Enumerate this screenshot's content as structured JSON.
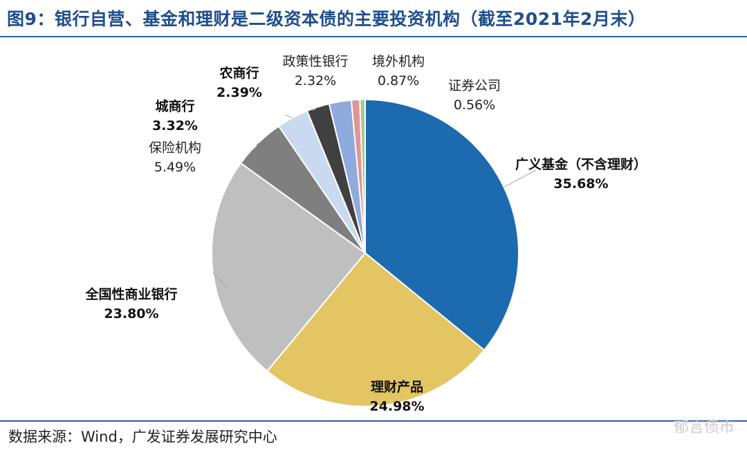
{
  "title": "图9：银行自营、基金和理财是二级资本债的主要投资机构（截至2021年2月末）",
  "source": "数据来源：Wind，广发证券发展研究中心",
  "watermark": "郁言债市",
  "chart_data": {
    "type": "pie",
    "start_angle": "12 o'clock",
    "direction": "clockwise",
    "slices": [
      {
        "name": "广义基金（不含理财）",
        "value": 35.68,
        "label": "35.68%",
        "color": "#1c6ab0",
        "bold": true
      },
      {
        "name": "理财产品",
        "value": 24.98,
        "label": "24.98%",
        "color": "#e3c563",
        "bold": true
      },
      {
        "name": "全国性商业银行",
        "value": 23.8,
        "label": "23.80%",
        "color": "#bfbfbf",
        "bold": true
      },
      {
        "name": "保险机构",
        "value": 5.49,
        "label": "5.49%",
        "color": "#7f7f7f",
        "bold": false
      },
      {
        "name": "城商行",
        "value": 3.32,
        "label": "3.32%",
        "color": "#c9d9ef",
        "bold": true
      },
      {
        "name": "农商行",
        "value": 2.39,
        "label": "2.39%",
        "color": "#404040",
        "bold": true
      },
      {
        "name": "政策性银行",
        "value": 2.32,
        "label": "2.32%",
        "color": "#8faadc",
        "bold": false
      },
      {
        "name": "境外机构",
        "value": 0.87,
        "label": "0.87%",
        "color": "#e09594",
        "bold": false
      },
      {
        "name": "证券公司",
        "value": 0.56,
        "label": "0.56%",
        "color": "#a9c98a",
        "bold": false
      }
    ]
  }
}
